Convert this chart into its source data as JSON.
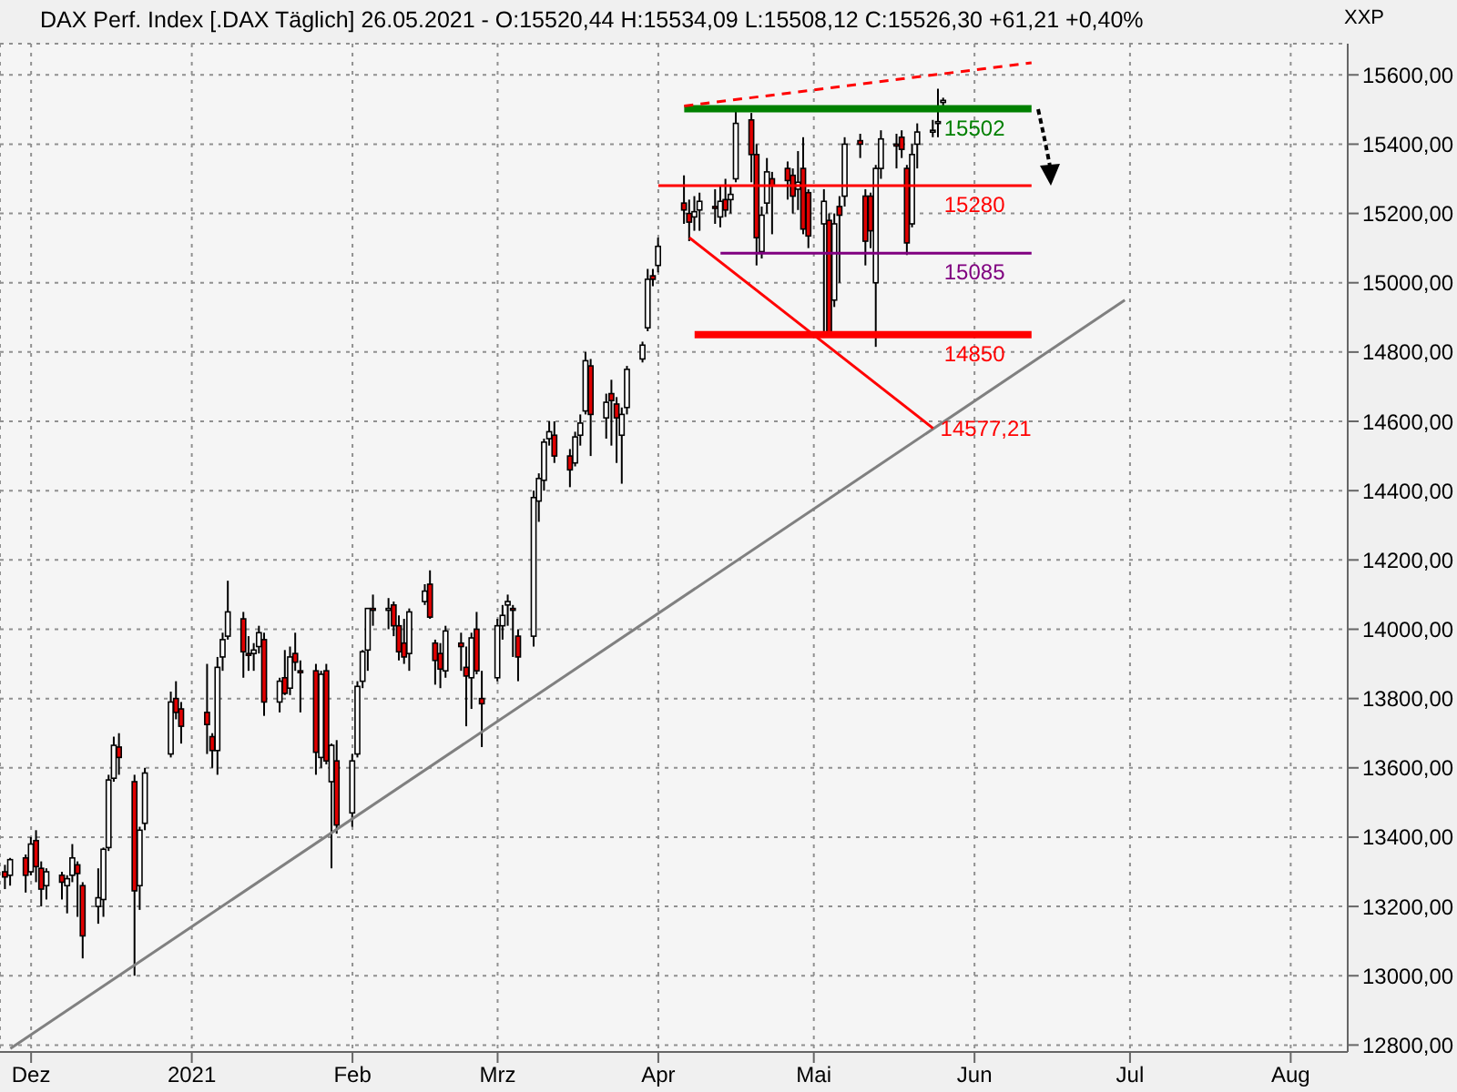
{
  "chart_data": {
    "type": "candlestick",
    "title": "DAX Perf. Index [.DAX  Täglich] 26.05.2021 - O:15520,44 H:15534,09 L:15508,12 C:15526,30 +61,21 +0,40%",
    "ylabel": "XXP",
    "x": [
      "2020-11-26",
      "2020-11-27",
      "2020-11-30",
      "2020-12-01",
      "2020-12-02",
      "2020-12-03",
      "2020-12-04",
      "2020-12-07",
      "2020-12-08",
      "2020-12-09",
      "2020-12-10",
      "2020-12-11",
      "2020-12-14",
      "2020-12-15",
      "2020-12-16",
      "2020-12-17",
      "2020-12-18",
      "2020-12-21",
      "2020-12-22",
      "2020-12-23",
      "2020-12-28",
      "2020-12-29",
      "2020-12-30",
      "2021-01-04",
      "2021-01-05",
      "2021-01-06",
      "2021-01-07",
      "2021-01-08",
      "2021-01-11",
      "2021-01-12",
      "2021-01-13",
      "2021-01-14",
      "2021-01-15",
      "2021-01-18",
      "2021-01-19",
      "2021-01-20",
      "2021-01-21",
      "2021-01-22",
      "2021-01-25",
      "2021-01-26",
      "2021-01-27",
      "2021-01-28",
      "2021-01-29",
      "2021-02-01",
      "2021-02-02",
      "2021-02-03",
      "2021-02-04",
      "2021-02-05",
      "2021-02-08",
      "2021-02-09",
      "2021-02-10",
      "2021-02-11",
      "2021-02-12",
      "2021-02-15",
      "2021-02-16",
      "2021-02-17",
      "2021-02-18",
      "2021-02-19",
      "2021-02-22",
      "2021-02-23",
      "2021-02-24",
      "2021-02-25",
      "2021-02-26",
      "2021-03-01",
      "2021-03-02",
      "2021-03-03",
      "2021-03-04",
      "2021-03-05",
      "2021-03-08",
      "2021-03-09",
      "2021-03-10",
      "2021-03-11",
      "2021-03-12",
      "2021-03-15",
      "2021-03-16",
      "2021-03-17",
      "2021-03-18",
      "2021-03-19",
      "2021-03-22",
      "2021-03-23",
      "2021-03-24",
      "2021-03-25",
      "2021-03-26",
      "2021-03-29",
      "2021-03-30",
      "2021-03-31",
      "2021-04-01",
      "2021-04-06",
      "2021-04-07",
      "2021-04-08",
      "2021-04-09",
      "2021-04-12",
      "2021-04-13",
      "2021-04-14",
      "2021-04-15",
      "2021-04-16",
      "2021-04-19",
      "2021-04-20",
      "2021-04-21",
      "2021-04-22",
      "2021-04-23",
      "2021-04-26",
      "2021-04-27",
      "2021-04-28",
      "2021-04-29",
      "2021-04-30",
      "2021-05-03",
      "2021-05-04",
      "2021-05-05",
      "2021-05-06",
      "2021-05-07",
      "2021-05-10",
      "2021-05-11",
      "2021-05-12",
      "2021-05-13",
      "2021-05-14",
      "2021-05-17",
      "2021-05-18",
      "2021-05-19",
      "2021-05-20",
      "2021-05-21",
      "2021-05-24",
      "2021-05-25",
      "2021-05-26"
    ],
    "ohlc": [
      [
        13300,
        13320,
        13250,
        13285
      ],
      [
        13290,
        13340,
        13260,
        13335
      ],
      [
        13340,
        13350,
        13240,
        13290
      ],
      [
        13300,
        13400,
        13290,
        13380
      ],
      [
        13390,
        13420,
        13270,
        13315
      ],
      [
        13310,
        13330,
        13200,
        13250
      ],
      [
        13260,
        13310,
        13220,
        13300
      ],
      [
        13290,
        13300,
        13220,
        13270
      ],
      [
        13260,
        13290,
        13180,
        13280
      ],
      [
        13290,
        13380,
        13270,
        13340
      ],
      [
        13320,
        13330,
        13170,
        13295
      ],
      [
        13260,
        13270,
        13050,
        13115
      ],
      [
        13200,
        13310,
        13150,
        13225
      ],
      [
        13220,
        13370,
        13170,
        13365
      ],
      [
        13370,
        13580,
        13360,
        13565
      ],
      [
        13570,
        13690,
        13560,
        13665
      ],
      [
        13660,
        13700,
        13580,
        13630
      ],
      [
        13560,
        13580,
        13000,
        13245
      ],
      [
        13260,
        13430,
        13190,
        13420
      ],
      [
        13440,
        13600,
        13420,
        13585
      ],
      [
        13640,
        13820,
        13630,
        13790
      ],
      [
        13800,
        13850,
        13740,
        13760
      ],
      [
        13770,
        13790,
        13670,
        13720
      ],
      [
        13760,
        13900,
        13640,
        13725
      ],
      [
        13690,
        13700,
        13600,
        13650
      ],
      [
        13650,
        13920,
        13580,
        13890
      ],
      [
        13920,
        13990,
        13880,
        13970
      ],
      [
        13980,
        14140,
        13970,
        14050
      ],
      [
        14030,
        14050,
        13860,
        13935
      ],
      [
        13930,
        13980,
        13880,
        13925
      ],
      [
        13930,
        13960,
        13880,
        13940
      ],
      [
        13950,
        14010,
        13930,
        13990
      ],
      [
        13970,
        13990,
        13750,
        13790
      ],
      [
        13790,
        13860,
        13760,
        13850
      ],
      [
        13860,
        13940,
        13810,
        13815
      ],
      [
        13830,
        13950,
        13810,
        13920
      ],
      [
        13930,
        13990,
        13880,
        13905
      ],
      [
        13880,
        13910,
        13760,
        13875
      ],
      [
        13880,
        13900,
        13580,
        13645
      ],
      [
        13630,
        13880,
        13600,
        13870
      ],
      [
        13880,
        13900,
        13610,
        13620
      ],
      [
        13560,
        13670,
        13310,
        13665
      ],
      [
        13620,
        13680,
        13410,
        13435
      ],
      [
        13470,
        13640,
        13430,
        13620
      ],
      [
        13640,
        13850,
        13630,
        13835
      ],
      [
        13850,
        13940,
        13830,
        13935
      ],
      [
        13940,
        14060,
        13880,
        14060
      ],
      [
        14060,
        14100,
        14010,
        14055
      ],
      [
        14060,
        14090,
        14000,
        14060
      ],
      [
        14070,
        14080,
        13980,
        14010
      ],
      [
        14010,
        14040,
        13910,
        13935
      ],
      [
        13960,
        14030,
        13900,
        13920
      ],
      [
        13930,
        14060,
        13880,
        14050
      ],
      [
        14080,
        14130,
        14070,
        14110
      ],
      [
        14130,
        14170,
        14030,
        14035
      ],
      [
        13960,
        13970,
        13840,
        13910
      ],
      [
        13930,
        13960,
        13830,
        13885
      ],
      [
        13880,
        14010,
        13860,
        13995
      ],
      [
        13960,
        13990,
        13880,
        13950
      ],
      [
        13890,
        13950,
        13720,
        13865
      ],
      [
        13860,
        13990,
        13770,
        13975
      ],
      [
        14000,
        14050,
        13870,
        13880
      ],
      [
        13800,
        13880,
        13660,
        13785
      ],
      [
        13860,
        14030,
        13850,
        14010
      ],
      [
        14010,
        14070,
        13970,
        14040
      ],
      [
        14070,
        14100,
        14010,
        14080
      ],
      [
        14060,
        14070,
        13920,
        14055
      ],
      [
        13980,
        14000,
        13850,
        13920
      ],
      [
        13980,
        14400,
        13950,
        14380
      ],
      [
        14370,
        14450,
        14310,
        14435
      ],
      [
        14430,
        14550,
        14400,
        14540
      ],
      [
        14550,
        14600,
        14530,
        14570
      ],
      [
        14560,
        14600,
        14480,
        14500
      ],
      [
        14500,
        14520,
        14410,
        14460
      ],
      [
        14480,
        14570,
        14470,
        14555
      ],
      [
        14560,
        14620,
        14530,
        14595
      ],
      [
        14630,
        14800,
        14620,
        14775
      ],
      [
        14760,
        14780,
        14500,
        14620
      ],
      [
        14610,
        14680,
        14550,
        14655
      ],
      [
        14680,
        14720,
        14530,
        14660
      ],
      [
        14650,
        14670,
        14480,
        14610
      ],
      [
        14560,
        14640,
        14420,
        14620
      ],
      [
        14640,
        14760,
        14620,
        14750
      ],
      [
        14780,
        14830,
        14770,
        14820
      ],
      [
        14870,
        15040,
        14860,
        15010
      ],
      [
        15020,
        15040,
        14990,
        15010
      ],
      [
        15050,
        15130,
        15030,
        15105
      ],
      [
        15230,
        15310,
        15170,
        15210
      ],
      [
        15200,
        15240,
        15120,
        15175
      ],
      [
        15190,
        15250,
        15150,
        15205
      ],
      [
        15210,
        15260,
        15150,
        15235
      ],
      [
        15220,
        15270,
        15170,
        15215
      ],
      [
        15190,
        15280,
        15160,
        15235
      ],
      [
        15240,
        15300,
        15190,
        15210
      ],
      [
        15240,
        15280,
        15200,
        15255
      ],
      [
        15300,
        15500,
        15290,
        15460
      ],
      [
        15470,
        15490,
        15290,
        15370
      ],
      [
        15370,
        15400,
        15050,
        15130
      ],
      [
        15090,
        15220,
        15070,
        15195
      ],
      [
        15230,
        15360,
        15200,
        15320
      ],
      [
        15300,
        15320,
        15140,
        15280
      ],
      [
        15330,
        15350,
        15240,
        15295
      ],
      [
        15310,
        15330,
        15200,
        15250
      ],
      [
        15270,
        15380,
        15210,
        15290
      ],
      [
        15330,
        15420,
        15140,
        15155
      ],
      [
        15260,
        15270,
        15100,
        15135
      ],
      [
        15170,
        15270,
        14850,
        15235
      ],
      [
        15180,
        15200,
        14850,
        14855
      ],
      [
        14950,
        15200,
        14930,
        15170
      ],
      [
        15220,
        15250,
        15000,
        15195
      ],
      [
        15250,
        15420,
        15220,
        15400
      ],
      [
        15410,
        15430,
        15360,
        15400
      ],
      [
        15250,
        15270,
        15050,
        15120
      ],
      [
        15250,
        15260,
        15100,
        15150
      ],
      [
        15000,
        15340,
        14815,
        15330
      ],
      [
        15330,
        15440,
        15300,
        15415
      ],
      [
        15400,
        15430,
        15330,
        15395
      ],
      [
        15420,
        15440,
        15360,
        15385
      ],
      [
        15330,
        15340,
        15080,
        15115
      ],
      [
        15170,
        15400,
        15160,
        15370
      ],
      [
        15400,
        15460,
        15330,
        15435
      ],
      [
        15440,
        15470,
        15420,
        15440
      ],
      [
        15460,
        15560,
        15420,
        15465
      ],
      [
        15520.44,
        15534.09,
        15508.12,
        15526.3
      ]
    ],
    "series": [
      {
        "type": "line",
        "color": "#808080",
        "x": [
          "2020-11-27",
          "2021-06-30"
        ],
        "values": [
          12790,
          14950
        ]
      },
      {
        "type": "line",
        "color": "#008000",
        "x": [
          "2021-04-06",
          "2021-06-12"
        ],
        "values": [
          15502,
          15502
        ]
      },
      {
        "type": "line",
        "color": "#ff0000",
        "x": [
          "2021-04-01",
          "2021-06-12"
        ],
        "values": [
          15280,
          15280
        ]
      },
      {
        "type": "line",
        "color": "#800080",
        "x": [
          "2021-04-13",
          "2021-06-12"
        ],
        "values": [
          15085,
          15085
        ]
      },
      {
        "type": "line",
        "color": "#ff0000",
        "x": [
          "2021-04-08",
          "2021-06-12"
        ],
        "values": [
          14850,
          14850
        ]
      },
      {
        "type": "line",
        "color": "#ff0000",
        "line_style": "dashed",
        "x": [
          "2021-04-06",
          "2021-06-12"
        ],
        "values": [
          15510,
          15635
        ]
      },
      {
        "type": "line",
        "color": "#ff0000",
        "x": [
          "2021-04-07",
          "2021-05-24"
        ],
        "values": [
          15130,
          14580
        ]
      }
    ],
    "annotations": [
      {
        "text": "15502",
        "x": "2021-06-01",
        "y": 15502
      },
      {
        "text": "15280",
        "x": "2021-06-01",
        "y": 15280
      },
      {
        "text": "15085",
        "x": "2021-06-01",
        "y": 15085
      },
      {
        "text": "14850",
        "x": "2021-06-01",
        "y": 14850
      },
      {
        "text": "14577,21",
        "x": "2021-05-24",
        "y": 14580
      }
    ],
    "xlim": [
      "2020-11-25",
      "2021-08-12"
    ],
    "xticks": [
      {
        "value": "2020-12-01",
        "label": "Dez"
      },
      {
        "value": "2021-01-01",
        "label": "2021"
      },
      {
        "value": "2021-02-01",
        "label": "Feb"
      },
      {
        "value": "2021-03-01",
        "label": "Mrz"
      },
      {
        "value": "2021-04-01",
        "label": "Apr"
      },
      {
        "value": "2021-05-01",
        "label": "Mai"
      },
      {
        "value": "2021-06-01",
        "label": "Jun"
      },
      {
        "value": "2021-07-01",
        "label": "Jul"
      },
      {
        "value": "2021-08-01",
        "label": "Aug"
      }
    ],
    "ylim": [
      12780,
      15690
    ],
    "yticks": [
      {
        "value": 12800,
        "label": "12800,00"
      },
      {
        "value": 13000,
        "label": "13000,00"
      },
      {
        "value": 13200,
        "label": "13200,00"
      },
      {
        "value": 13400,
        "label": "13400,00"
      },
      {
        "value": 13600,
        "label": "13600,00"
      },
      {
        "value": 13800,
        "label": "13800,00"
      },
      {
        "value": 14000,
        "label": "14000,00"
      },
      {
        "value": 14200,
        "label": "14200,00"
      },
      {
        "value": 14400,
        "label": "14400,00"
      },
      {
        "value": 14600,
        "label": "14600,00"
      },
      {
        "value": 14800,
        "label": "14800,00"
      },
      {
        "value": 15000,
        "label": "15000,00"
      },
      {
        "value": 15200,
        "label": "15200,00"
      },
      {
        "value": 15400,
        "label": "15400,00"
      },
      {
        "value": 15600,
        "label": "15600,00"
      }
    ],
    "grid": true
  }
}
